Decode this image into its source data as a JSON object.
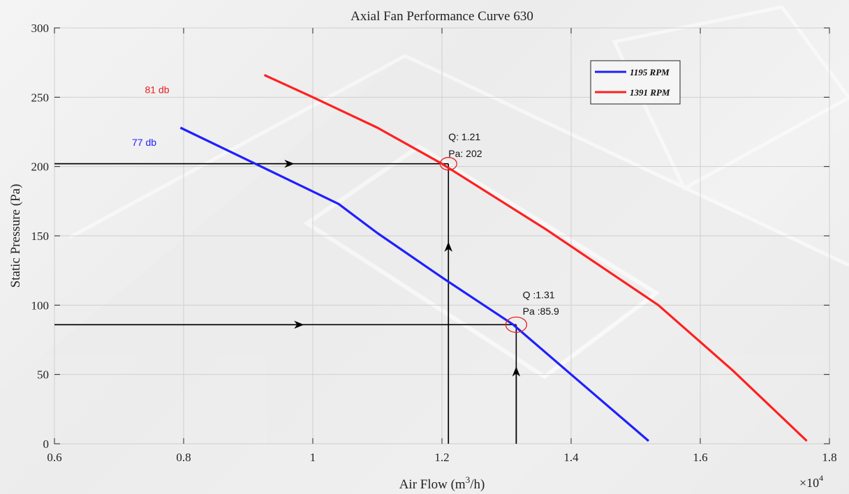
{
  "chart_data": {
    "type": "line",
    "title": "Axial Fan Performance Curve 630",
    "xlabel_main": "Air Flow (m",
    "xlabel_sup": "3",
    "xlabel_end": "/h)",
    "ylabel": "Static Pressure (Pa)",
    "x_multiplier_base": "×10",
    "x_multiplier_exp": "4",
    "xlim": [
      0.6,
      1.8
    ],
    "ylim": [
      0,
      300
    ],
    "xticks": [
      0.6,
      0.8,
      1.0,
      1.2,
      1.4,
      1.6,
      1.8
    ],
    "xtick_labels": [
      "0.6",
      "0.8",
      "1",
      "1.2",
      "1.4",
      "1.6",
      "1.8"
    ],
    "yticks": [
      0,
      50,
      100,
      150,
      200,
      250,
      300
    ],
    "grid": true,
    "legend_position": "top-right",
    "series": [
      {
        "name": "1195 RPM",
        "color": "#1f1fff",
        "x": [
          0.795,
          0.92,
          1.04,
          1.1,
          1.2,
          1.31,
          1.4,
          1.52
        ],
        "y": [
          228,
          200,
          173,
          152,
          120,
          86,
          50,
          2
        ]
      },
      {
        "name": "1391 RPM",
        "color": "#ff2020",
        "x": [
          0.925,
          1.0,
          1.1,
          1.2,
          1.36,
          1.535,
          1.65,
          1.765
        ],
        "y": [
          266,
          250,
          228,
          202,
          155,
          100,
          53,
          2
        ]
      }
    ],
    "annotations": {
      "db77": {
        "text": "77 db",
        "color": "#2020ff",
        "x": 0.72,
        "y": 215
      },
      "db81": {
        "text": "81 db",
        "color": "#e62020",
        "x": 0.74,
        "y": 253
      },
      "p1_line1": {
        "text": "Q: 1.21",
        "x": 1.21,
        "y": 219
      },
      "p1_line2": {
        "text": "Pa: 202",
        "x": 1.21,
        "y": 207
      },
      "p2_line1": {
        "text": "Q  :1.31",
        "x": 1.325,
        "y": 105
      },
      "p2_line2": {
        "text": "Pa :85.9",
        "x": 1.325,
        "y": 93
      }
    },
    "markers": [
      {
        "x": 1.21,
        "y": 202
      },
      {
        "x": 1.315,
        "y": 85.9
      }
    ]
  }
}
